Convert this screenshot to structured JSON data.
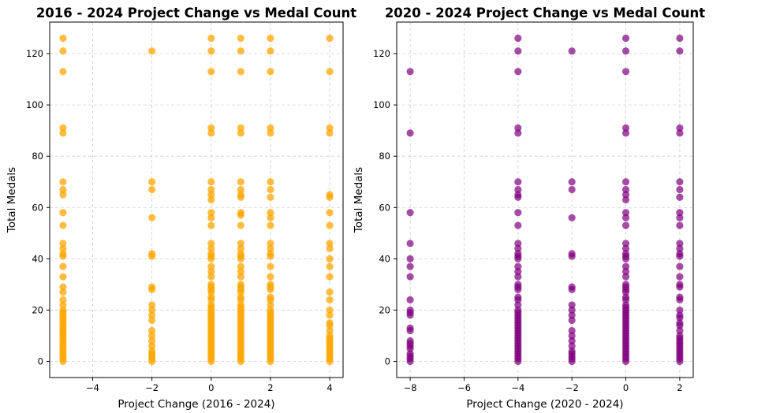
{
  "chart_data": [
    {
      "type": "scatter",
      "title": "2016 - 2024 Project Change vs Medal Count",
      "xlabel": "Project Change (2016 - 2024)",
      "ylabel": "Total Medals",
      "xlim": [
        -5.45,
        4.45
      ],
      "ylim": [
        -6.3,
        132.3
      ],
      "xticks": [
        -4,
        -2,
        0,
        2,
        4
      ],
      "yticks": [
        0,
        20,
        40,
        60,
        80,
        100,
        120
      ],
      "grid": true,
      "color": "#FFA500",
      "opacity": 0.75,
      "points": [
        {
          "x": -5,
          "y": [
            126,
            121,
            113,
            91,
            89,
            70,
            67,
            65,
            58,
            53,
            46,
            44,
            42,
            41,
            37,
            33,
            29,
            27,
            24,
            22,
            20,
            19,
            18,
            17,
            16,
            15,
            14,
            13,
            12,
            11,
            10,
            9,
            8,
            7,
            6,
            5,
            4,
            3,
            2,
            1,
            0
          ]
        },
        {
          "x": -2,
          "y": [
            121,
            70,
            67,
            56,
            42,
            41,
            29,
            28,
            22,
            20,
            18,
            16,
            12,
            10,
            8,
            6,
            4,
            3,
            2,
            1,
            0
          ]
        },
        {
          "x": 0,
          "y": [
            126,
            121,
            113,
            91,
            89,
            70,
            67,
            65,
            63,
            58,
            56,
            53,
            46,
            44,
            42,
            41,
            40,
            37,
            35,
            33,
            30,
            29,
            28,
            27,
            25,
            24,
            22,
            21,
            20,
            19,
            18,
            17,
            16,
            15,
            14,
            13,
            12,
            11,
            10,
            9,
            8,
            7,
            6,
            5,
            4,
            3,
            2,
            1,
            0
          ]
        },
        {
          "x": 1,
          "y": [
            126,
            121,
            113,
            91,
            89,
            70,
            67,
            65,
            64,
            58,
            57,
            53,
            46,
            44,
            42,
            41,
            40,
            37,
            35,
            33,
            30,
            29,
            28,
            27,
            25,
            24,
            22,
            21,
            20,
            19,
            18,
            17,
            16,
            15,
            14,
            13,
            12,
            11,
            10,
            9,
            8,
            7,
            6,
            5,
            4,
            3,
            2,
            1,
            0
          ]
        },
        {
          "x": 2,
          "y": [
            126,
            121,
            113,
            91,
            89,
            70,
            67,
            64,
            58,
            56,
            53,
            46,
            44,
            42,
            41,
            37,
            33,
            30,
            29,
            28,
            25,
            24,
            22,
            20,
            19,
            18,
            17,
            16,
            15,
            14,
            13,
            12,
            11,
            10,
            9,
            8,
            7,
            6,
            5,
            4,
            3,
            2,
            1,
            0
          ]
        },
        {
          "x": 4,
          "y": [
            126,
            113,
            91,
            89,
            65,
            64,
            58,
            53,
            46,
            44,
            40,
            37,
            33,
            27,
            24,
            20,
            18,
            15,
            14,
            12,
            10,
            9,
            8,
            7,
            6,
            5,
            4,
            3,
            2,
            1,
            0
          ]
        }
      ]
    },
    {
      "type": "scatter",
      "title": "2020 - 2024 Project Change vs Medal Count",
      "xlabel": "Project Change (2020 - 2024)",
      "ylabel": "Total Medals",
      "xlim": [
        -8.5,
        2.5
      ],
      "ylim": [
        -6.3,
        132.3
      ],
      "xticks": [
        -8,
        -6,
        -4,
        -2,
        0,
        2
      ],
      "yticks": [
        0,
        20,
        40,
        60,
        80,
        100,
        120
      ],
      "grid": true,
      "color": "#800080",
      "opacity": 0.7,
      "points": [
        {
          "x": -8,
          "y": [
            113,
            89,
            58,
            46,
            40,
            37,
            33,
            24,
            20,
            19,
            18,
            13,
            12,
            8,
            7,
            6,
            5,
            3,
            2,
            1,
            0
          ]
        },
        {
          "x": -4,
          "y": [
            126,
            121,
            113,
            91,
            89,
            70,
            67,
            65,
            64,
            58,
            53,
            46,
            44,
            42,
            41,
            40,
            37,
            35,
            33,
            30,
            29,
            28,
            25,
            24,
            22,
            20,
            19,
            18,
            17,
            16,
            15,
            14,
            13,
            12,
            11,
            10,
            9,
            8,
            7,
            6,
            5,
            4,
            3,
            2,
            1,
            0
          ]
        },
        {
          "x": -2,
          "y": [
            121,
            70,
            67,
            56,
            42,
            41,
            29,
            28,
            22,
            20,
            18,
            16,
            12,
            10,
            8,
            6,
            4,
            3,
            2,
            1,
            0
          ]
        },
        {
          "x": 0,
          "y": [
            126,
            121,
            113,
            91,
            89,
            70,
            67,
            65,
            63,
            58,
            56,
            53,
            46,
            44,
            42,
            41,
            40,
            37,
            35,
            33,
            30,
            29,
            28,
            27,
            25,
            24,
            22,
            21,
            20,
            19,
            18,
            17,
            16,
            15,
            14,
            13,
            12,
            11,
            10,
            9,
            8,
            7,
            6,
            5,
            4,
            3,
            2,
            1,
            0
          ]
        },
        {
          "x": 2,
          "y": [
            126,
            121,
            91,
            89,
            70,
            67,
            64,
            58,
            56,
            53,
            46,
            44,
            42,
            41,
            37,
            33,
            30,
            29,
            25,
            24,
            20,
            18,
            17,
            15,
            14,
            12,
            10,
            9,
            8,
            7,
            6,
            5,
            4,
            3,
            2,
            1,
            0
          ]
        }
      ]
    }
  ]
}
